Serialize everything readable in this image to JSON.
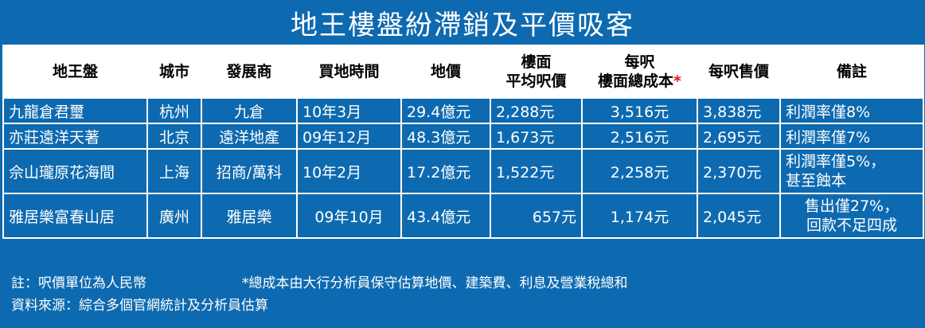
{
  "title": "地王樓盤紛滯銷及平價吸客",
  "headers": {
    "project": "地王盤",
    "city": "城市",
    "developer": "發展商",
    "purchase_time": "買地時間",
    "land_price": "地價",
    "avg_price_line1": "樓面",
    "avg_price_line2": "平均呎價",
    "cost_line1": "每呎",
    "cost_line2": "樓面總成本",
    "cost_mark": "*",
    "selling_price": "每呎售價",
    "remarks": "備註"
  },
  "rows": [
    {
      "project": "九龍倉君璽",
      "city": "杭州",
      "developer": "九倉",
      "purchase_time": "10年3月",
      "land_price": "29.4億元",
      "avg_price": "2,288元",
      "cost": "3,516元",
      "selling_price": "3,838元",
      "remarks": "利潤率僅8%"
    },
    {
      "project": "亦莊遠洋天著",
      "city": "北京",
      "developer": "遠洋地產",
      "purchase_time": "09年12月",
      "land_price": "48.3億元",
      "avg_price": "1,673元",
      "cost": "2,516元",
      "selling_price": "2,695元",
      "remarks": "利潤率僅7%"
    },
    {
      "project": "佘山瓏原花海間",
      "city": "上海",
      "developer": "招商/萬科",
      "purchase_time": "10年2月",
      "land_price": "17.2億元",
      "avg_price": "1,522元",
      "cost": "2,258元",
      "selling_price": "2,370元",
      "remarks_line1": "利潤率僅5%，",
      "remarks_line2": "甚至蝕本"
    },
    {
      "project": "雅居樂富春山居",
      "city": "廣州",
      "developer": "雅居樂",
      "purchase_time": "09年10月",
      "land_price": "43.4億元",
      "avg_price": "657元",
      "cost": "1,174元",
      "selling_price": "2,045元",
      "remarks_line1": "售出僅27%，",
      "remarks_line2": "回款不足四成"
    }
  ],
  "footer": {
    "note_unit": "註：呎價單位為人民幣",
    "note_cost": "*總成本由大行分析員保守估算地價、建築費、利息及營業稅總和",
    "source": "資料來源：綜合多個官網統計及分析員估算"
  },
  "colors": {
    "background": "#0e6ab0",
    "header_bg": "#ffffff",
    "asterisk": "#e8141b"
  }
}
